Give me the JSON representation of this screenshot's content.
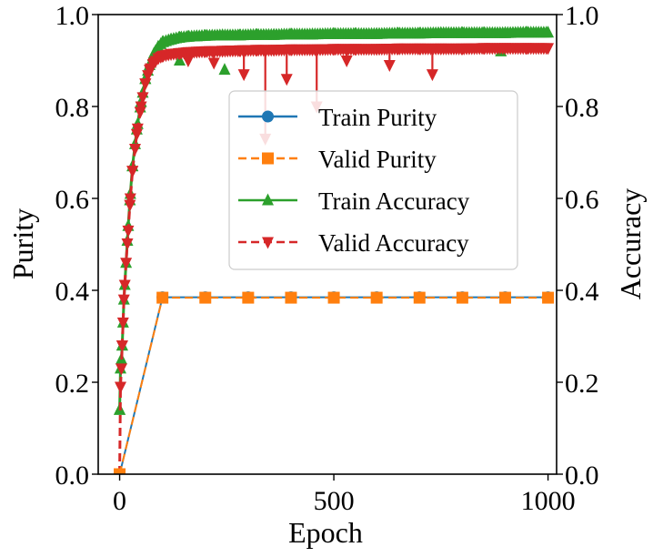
{
  "chart_data": {
    "type": "line",
    "xlabel": "Epoch",
    "ylabel_left": "Purity",
    "ylabel_right": "Accuracy",
    "xlim": [
      -50,
      1020
    ],
    "ylim_left": [
      0.0,
      1.0
    ],
    "ylim_right": [
      0.0,
      1.0
    ],
    "x_ticks": [
      0,
      500,
      1000
    ],
    "y_ticks": [
      0.0,
      0.2,
      0.4,
      0.6,
      0.8,
      1.0
    ],
    "x_tick_labels": [
      "0",
      "500",
      "1000"
    ],
    "y_tick_labels_left": [
      "0.0",
      "0.2",
      "0.4",
      "0.6",
      "0.8",
      "1.0"
    ],
    "y_tick_labels_right": [
      "0.0",
      "0.2",
      "0.4",
      "0.6",
      "0.8",
      "1.0"
    ],
    "legend_position": "center-right",
    "series": [
      {
        "name": "Train Purity",
        "axis": "left",
        "color": "#1f77b4",
        "linestyle": "solid",
        "marker": "circle",
        "x": [
          0,
          100,
          200,
          300,
          400,
          500,
          600,
          700,
          800,
          900,
          1000
        ],
        "y": [
          0.0,
          0.385,
          0.385,
          0.385,
          0.385,
          0.385,
          0.385,
          0.385,
          0.385,
          0.385,
          0.385
        ]
      },
      {
        "name": "Valid Purity",
        "axis": "left",
        "color": "#ff7f0e",
        "linestyle": "dashed",
        "marker": "square",
        "x": [
          0,
          100,
          200,
          300,
          400,
          500,
          600,
          700,
          800,
          900,
          1000
        ],
        "y": [
          0.0,
          0.384,
          0.384,
          0.384,
          0.384,
          0.384,
          0.384,
          0.384,
          0.384,
          0.384,
          0.384
        ]
      },
      {
        "name": "Train Accuracy",
        "axis": "right",
        "color": "#2ca02c",
        "linestyle": "solid",
        "marker": "triangle-up",
        "x": [
          0,
          2,
          4,
          6,
          8,
          10,
          15,
          20,
          25,
          30,
          40,
          50,
          60,
          70,
          80,
          90,
          100,
          120,
          140,
          160,
          180,
          200,
          240,
          280,
          320,
          360,
          400,
          450,
          500,
          550,
          600,
          650,
          700,
          750,
          800,
          850,
          900,
          950,
          1000
        ],
        "y": [
          0.14,
          0.23,
          0.25,
          0.28,
          0.33,
          0.38,
          0.46,
          0.54,
          0.61,
          0.67,
          0.75,
          0.81,
          0.86,
          0.89,
          0.915,
          0.93,
          0.94,
          0.946,
          0.95,
          0.952,
          0.953,
          0.954,
          0.955,
          0.955,
          0.956,
          0.956,
          0.957,
          0.957,
          0.958,
          0.958,
          0.958,
          0.959,
          0.959,
          0.96,
          0.96,
          0.96,
          0.96,
          0.961,
          0.961
        ],
        "outliers": [
          {
            "x": 140,
            "y": 0.9
          },
          {
            "x": 245,
            "y": 0.88
          },
          {
            "x": 890,
            "y": 0.92
          }
        ]
      },
      {
        "name": "Valid Accuracy",
        "axis": "right",
        "color": "#d62728",
        "linestyle": "dashed",
        "marker": "triangle-down",
        "x": [
          0,
          2,
          4,
          6,
          8,
          10,
          15,
          20,
          25,
          30,
          40,
          50,
          60,
          70,
          80,
          90,
          100,
          120,
          140,
          160,
          180,
          200,
          240,
          280,
          320,
          360,
          400,
          450,
          500,
          550,
          600,
          650,
          700,
          750,
          800,
          850,
          900,
          950,
          1000
        ],
        "y": [
          0.0,
          0.19,
          0.23,
          0.28,
          0.33,
          0.38,
          0.46,
          0.53,
          0.6,
          0.66,
          0.74,
          0.8,
          0.85,
          0.88,
          0.895,
          0.905,
          0.91,
          0.914,
          0.916,
          0.918,
          0.919,
          0.92,
          0.921,
          0.922,
          0.923,
          0.923,
          0.924,
          0.924,
          0.925,
          0.925,
          0.925,
          0.926,
          0.926,
          0.926,
          0.926,
          0.927,
          0.927,
          0.927,
          0.927
        ],
        "spikes": [
          {
            "x": 160,
            "y": 0.9
          },
          {
            "x": 220,
            "y": 0.895
          },
          {
            "x": 290,
            "y": 0.87
          },
          {
            "x": 340,
            "y": 0.73
          },
          {
            "x": 390,
            "y": 0.86
          },
          {
            "x": 460,
            "y": 0.8
          },
          {
            "x": 530,
            "y": 0.9
          },
          {
            "x": 630,
            "y": 0.89
          },
          {
            "x": 730,
            "y": 0.87
          }
        ]
      }
    ]
  }
}
